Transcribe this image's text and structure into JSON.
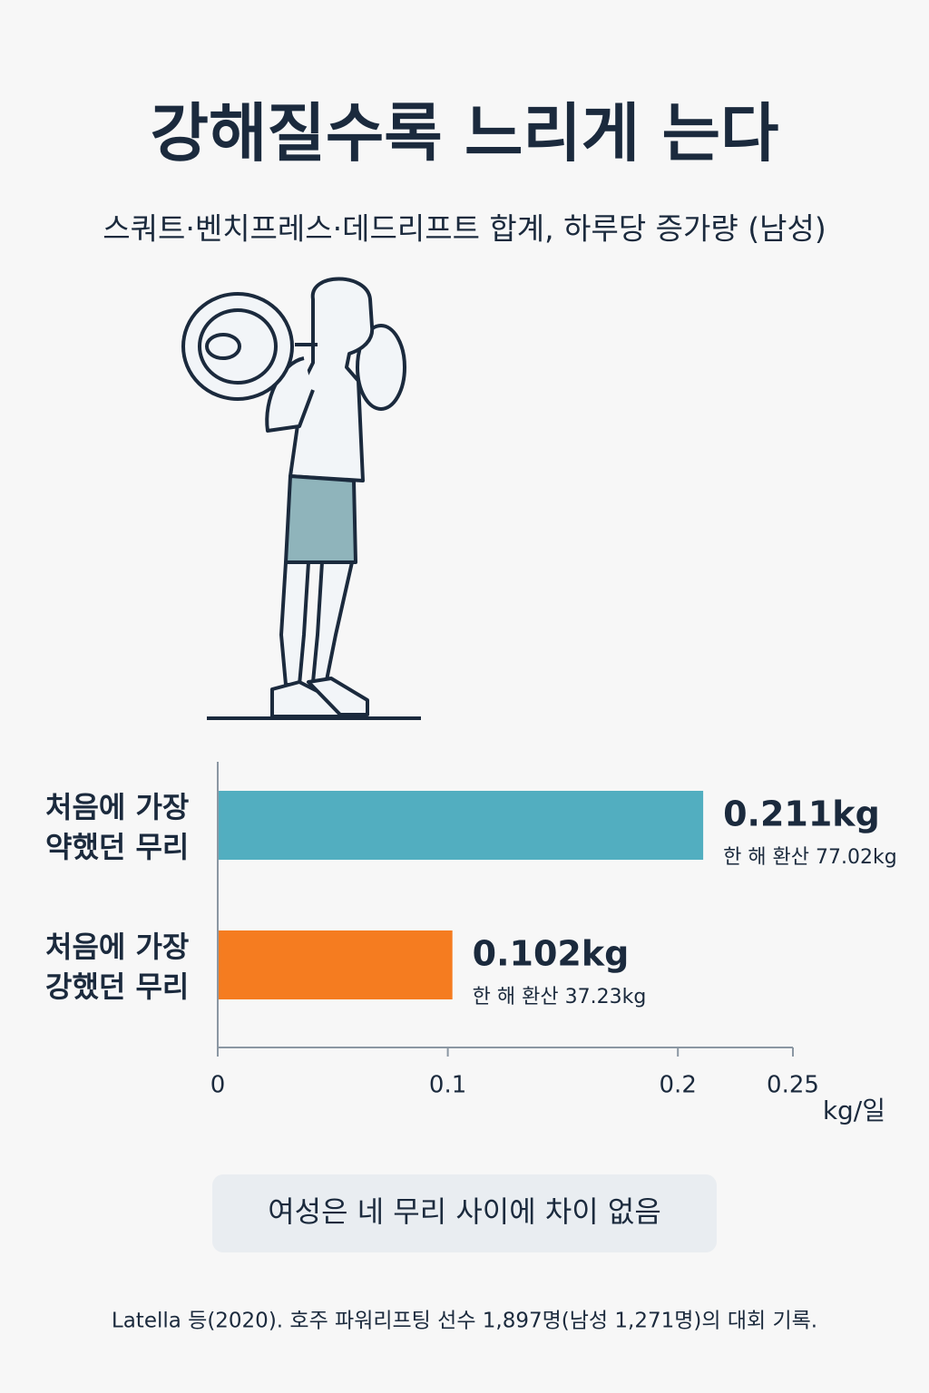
{
  "title": "강해질수록 느리게 는다",
  "subtitle": "스쿼트·벤치프레스·데드리프트 합계, 하루당 증가량 (남성)",
  "chart_data": {
    "type": "hbar",
    "categories": [
      "처음에 가장 약했던 무리",
      "처음에 가장 강했던 무리"
    ],
    "series": [
      {
        "colors": [
          "#52aec0",
          "#f57c20"
        ],
        "values": [
          0.211,
          0.102
        ],
        "value_labels": [
          "0.211kg",
          "0.102kg"
        ],
        "annual_labels": [
          "한 해 환산 77.02kg",
          "한 해 환산 37.23kg"
        ]
      }
    ],
    "xlim": [
      0,
      0.25
    ],
    "xticks": [
      0,
      0.1,
      0.2,
      0.25
    ],
    "x_label": "kg/일"
  },
  "note": "여성은 네 무리 사이에 차이 없음",
  "source": "Latella 등(2020). 호주 파워리프팅 선수 1,897명(남성 1,271명)의 대회 기록."
}
